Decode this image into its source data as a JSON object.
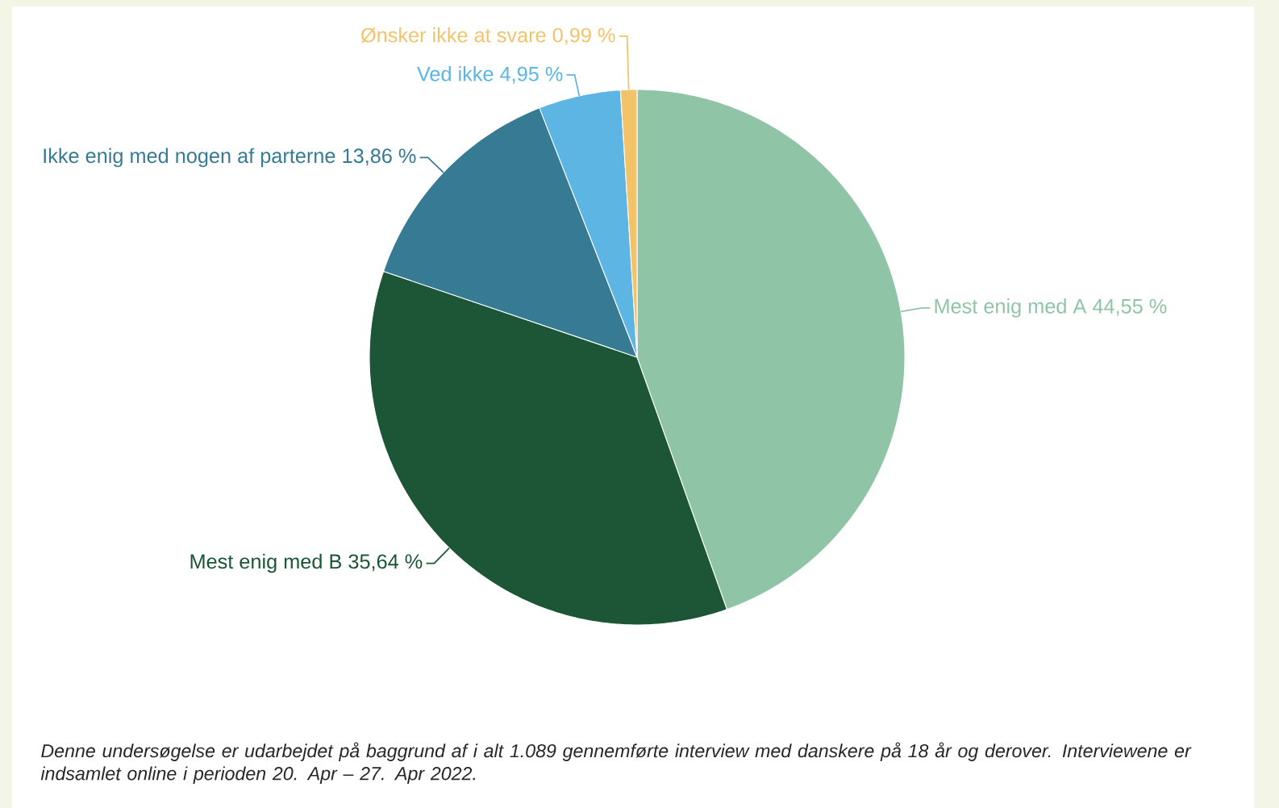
{
  "chart_data": {
    "type": "pie",
    "categories": [
      "Mest enig med A",
      "Mest enig med B",
      "Ikke enig med nogen af parterne",
      "Ved ikke",
      "Ønsker ikke at svare"
    ],
    "values": [
      44.55,
      35.64,
      13.86,
      4.95,
      0.99
    ],
    "value_labels": [
      "44,55 %",
      "35,64 %",
      "13,86 %",
      "4,95 %",
      "0,99 %"
    ],
    "colors": [
      "#8fc4a7",
      "#1c5636",
      "#367a94",
      "#5cb5e3",
      "#f3c36a"
    ],
    "annotations": [
      "*Denne undersøgelse er udarbejdet på baggrund af i alt 1.089 gennemførte interview med danskere på 18 år og derover. Interviewene er indsamlet online i perioden 20. Apr – 27. Apr 2022.*"
    ]
  }
}
